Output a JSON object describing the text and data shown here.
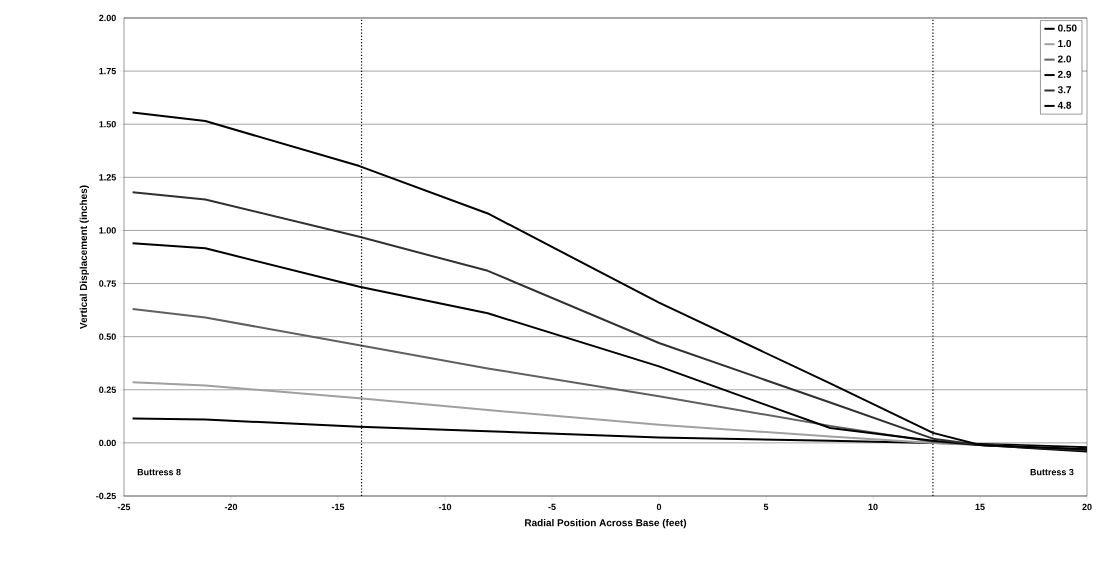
{
  "chart_data": {
    "type": "line",
    "xlabel": "Radial Position Across Base (feet)",
    "ylabel": "Vertical Displacement (inches)",
    "x": [
      -24.6,
      -21.2,
      -14,
      -8,
      0,
      8,
      12.8,
      15,
      20
    ],
    "series": [
      {
        "name": "0.50",
        "color": "#000000",
        "values": [
          0.115,
          0.11,
          0.076,
          0.055,
          0.025,
          0.01,
          0.0,
          -0.005,
          -0.02
        ]
      },
      {
        "name": "1.0",
        "color": "#a0a0a0",
        "values": [
          0.285,
          0.27,
          0.21,
          0.155,
          0.085,
          0.03,
          0.0,
          -0.01,
          -0.03
        ]
      },
      {
        "name": "2.0",
        "color": "#606060",
        "values": [
          0.63,
          0.59,
          0.46,
          0.35,
          0.22,
          0.08,
          0.005,
          -0.01,
          -0.03
        ]
      },
      {
        "name": "2.9",
        "color": "#000000",
        "values": [
          0.94,
          0.916,
          0.735,
          0.61,
          0.36,
          0.07,
          0.01,
          -0.01,
          -0.04
        ]
      },
      {
        "name": "3.7",
        "color": "#303030",
        "values": [
          1.18,
          1.146,
          0.97,
          0.81,
          0.47,
          0.19,
          0.02,
          -0.01,
          -0.035
        ]
      },
      {
        "name": "4.8",
        "color": "#000000",
        "values": [
          1.555,
          1.515,
          1.303,
          1.08,
          0.66,
          0.28,
          0.047,
          -0.01,
          -0.03
        ]
      }
    ],
    "xlim": [
      -25,
      20
    ],
    "xticks": [
      -25,
      -20,
      -15,
      -10,
      -5,
      0,
      5,
      10,
      15,
      20
    ],
    "ylim": [
      -0.25,
      2
    ],
    "yticks": [
      {
        "value": -0.25,
        "label": "-0.25"
      },
      {
        "value": 0,
        "label": "0.00"
      },
      {
        "value": 0.25,
        "label": "0.25"
      },
      {
        "value": 0.5,
        "label": "0.50"
      },
      {
        "value": 0.75,
        "label": "0.75"
      },
      {
        "value": 1,
        "label": "1.00"
      },
      {
        "value": 1.25,
        "label": "1.25"
      },
      {
        "value": 1.5,
        "label": "1.50"
      },
      {
        "value": 1.75,
        "label": "1.75"
      },
      {
        "value": 2,
        "label": "2.00"
      }
    ],
    "grid": "y",
    "legend": "top right",
    "marker": "none",
    "line_style": "solid",
    "ref_lines": [
      {
        "axis": "x",
        "value": -13.9,
        "line_style": "dotted"
      },
      {
        "axis": "x",
        "value": 12.8,
        "line_style": "dotted"
      }
    ],
    "annotations": [
      "Buttress 8",
      "Buttress 3"
    ]
  }
}
